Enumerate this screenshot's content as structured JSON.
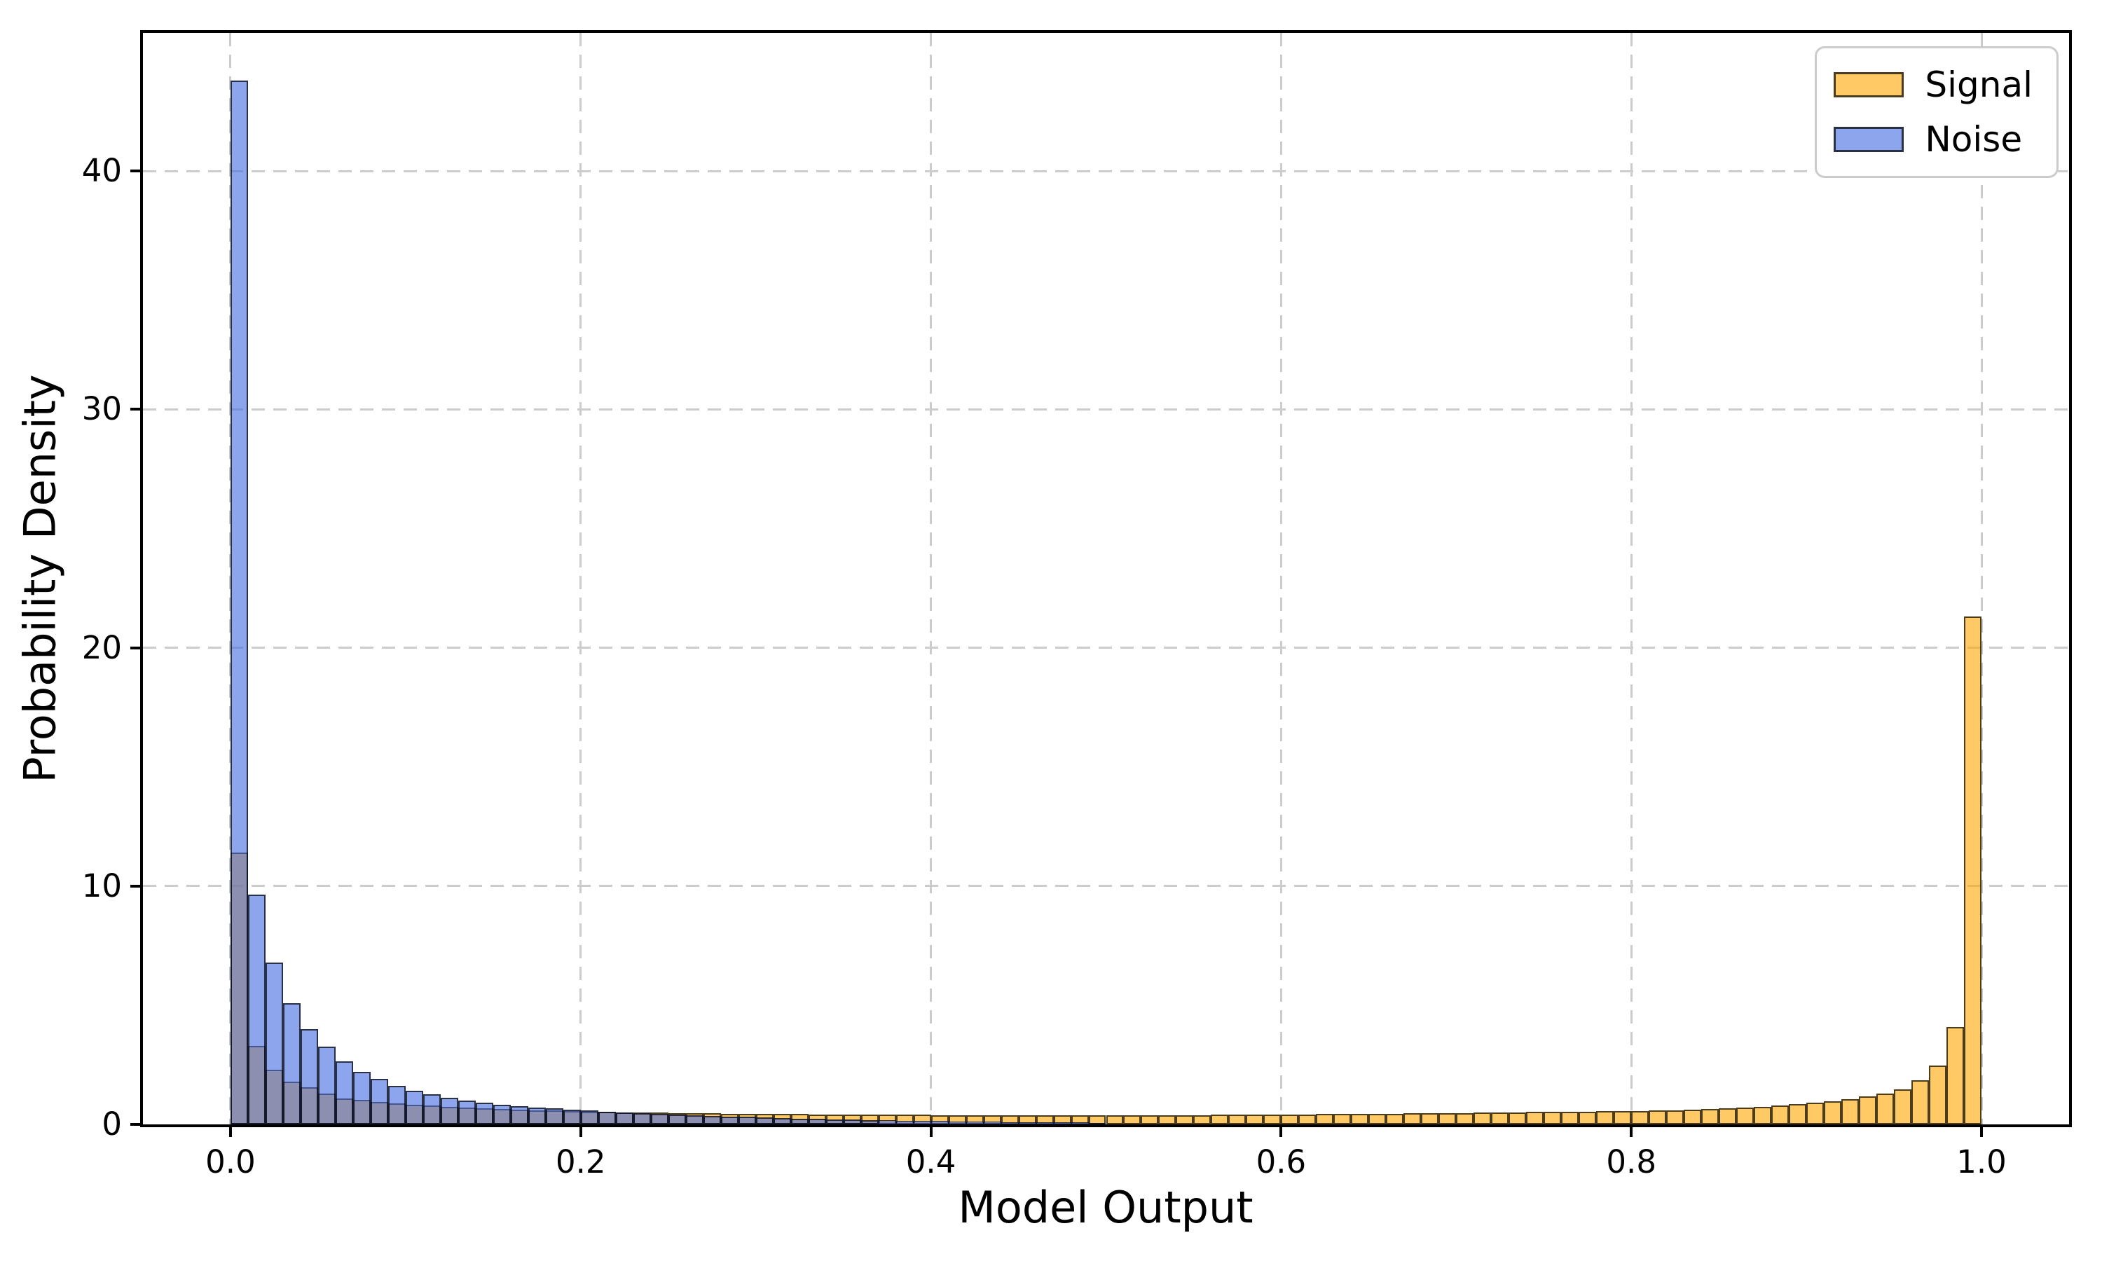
{
  "figure": {
    "background": "#FFFFFF",
    "spine_color": "#000000",
    "grid_color": "#CCCCCC"
  },
  "chart_data": {
    "type": "bar",
    "subtype": "histogram",
    "title": "",
    "xlabel": "Model Output",
    "ylabel": "Probability Density",
    "xlim": [
      -0.05,
      1.05
    ],
    "ylim": [
      0,
      45.8
    ],
    "grid": true,
    "legend_position": "upper right",
    "x_tick_labels": [
      "0.0",
      "0.2",
      "0.4",
      "0.6",
      "0.8",
      "1.0"
    ],
    "x_tick_values": [
      0.0,
      0.2,
      0.4,
      0.6,
      0.8,
      1.0
    ],
    "y_tick_labels": [
      "0",
      "10",
      "20",
      "30",
      "40"
    ],
    "y_tick_values": [
      0,
      10,
      20,
      30,
      40
    ],
    "bin_start": 0.0,
    "bin_width": 0.01,
    "bin_count": 100,
    "series": [
      {
        "name": "Signal",
        "fill": "rgba(255,165,0,0.6)",
        "hex_over_white": "#FFC966",
        "edge": "rgba(0,0,0,0.7)",
        "values": [
          11.4,
          3.3,
          2.3,
          1.8,
          1.55,
          1.3,
          1.08,
          1.02,
          0.94,
          0.88,
          0.82,
          0.78,
          0.74,
          0.71,
          0.68,
          0.65,
          0.62,
          0.6,
          0.58,
          0.56,
          0.54,
          0.53,
          0.51,
          0.5,
          0.49,
          0.48,
          0.47,
          0.46,
          0.45,
          0.44,
          0.44,
          0.43,
          0.43,
          0.42,
          0.42,
          0.41,
          0.41,
          0.4,
          0.4,
          0.4,
          0.39,
          0.39,
          0.39,
          0.38,
          0.38,
          0.38,
          0.38,
          0.37,
          0.37,
          0.37,
          0.38,
          0.38,
          0.38,
          0.39,
          0.39,
          0.39,
          0.4,
          0.4,
          0.41,
          0.41,
          0.42,
          0.42,
          0.43,
          0.43,
          0.44,
          0.45,
          0.45,
          0.46,
          0.47,
          0.47,
          0.48,
          0.49,
          0.5,
          0.51,
          0.52,
          0.53,
          0.54,
          0.54,
          0.55,
          0.55,
          0.56,
          0.58,
          0.6,
          0.62,
          0.64,
          0.67,
          0.7,
          0.74,
          0.79,
          0.85,
          0.9,
          0.97,
          1.06,
          1.18,
          1.3,
          1.46,
          1.84,
          2.46,
          4.1,
          21.3
        ]
      },
      {
        "name": "Noise",
        "fill": "rgba(65,105,225,0.6)",
        "hex_over_white": "#8DA5ED",
        "edge": "rgba(0,0,0,0.7)",
        "values": [
          43.8,
          9.65,
          6.8,
          5.1,
          4.0,
          3.25,
          2.65,
          2.2,
          1.9,
          1.63,
          1.4,
          1.25,
          1.11,
          1.0,
          0.9,
          0.83,
          0.77,
          0.72,
          0.67,
          0.62,
          0.58,
          0.54,
          0.5,
          0.47,
          0.44,
          0.41,
          0.38,
          0.36,
          0.33,
          0.31,
          0.29,
          0.27,
          0.25,
          0.23,
          0.22,
          0.2,
          0.19,
          0.17,
          0.16,
          0.15,
          0.14,
          0.13,
          0.12,
          0.11,
          0.1,
          0.1,
          0.09,
          0.08,
          0.08,
          0.07,
          0.04,
          0.04,
          0.03,
          0.03,
          0.03,
          0.02,
          0.02,
          0.02,
          0.02,
          0.01,
          0.01,
          0.01,
          0.01,
          0.01,
          0.01,
          0.01,
          0.01,
          0.01,
          0.01,
          0.01,
          0.01,
          0.01,
          0,
          0,
          0,
          0,
          0,
          0,
          0,
          0,
          0,
          0,
          0,
          0,
          0,
          0,
          0,
          0,
          0,
          0,
          0,
          0,
          0,
          0,
          0,
          0,
          0,
          0,
          0,
          0
        ]
      }
    ],
    "overlap_hex_over_white": "#8D90B0"
  }
}
